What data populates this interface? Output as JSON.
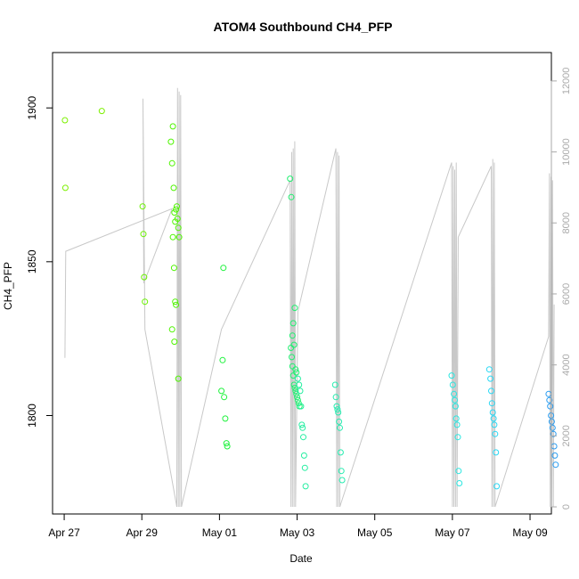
{
  "chart_data": {
    "type": "scatter",
    "title": "ATOM4 Southbound CH4_PFP",
    "xlabel": "Date",
    "ylabel": "CH4_PFP",
    "x_unit": "days since Apr 27",
    "xlim": [
      -0.3,
      12.55
    ],
    "ylim": [
      1768,
      1918
    ],
    "x_ticks": [
      {
        "value": 0,
        "label": "Apr 27"
      },
      {
        "value": 2,
        "label": "Apr 29"
      },
      {
        "value": 4,
        "label": "May 01"
      },
      {
        "value": 6,
        "label": "May 03"
      },
      {
        "value": 8,
        "label": "May 05"
      },
      {
        "value": 10,
        "label": "May 07"
      },
      {
        "value": 12,
        "label": "May 09"
      }
    ],
    "y_ticks": [
      1800,
      1850,
      1900
    ],
    "secondary_axis": {
      "ylim": [
        -200,
        12800
      ],
      "ticks": [
        0,
        2000,
        4000,
        6000,
        8000,
        10000,
        12000
      ],
      "color": "#aaaaaa"
    },
    "series": [
      {
        "name": "CH4_PFP",
        "points": [
          {
            "x": 0.02,
            "y": 1896,
            "color": "#7cf000"
          },
          {
            "x": 0.03,
            "y": 1874,
            "color": "#7cf000"
          },
          {
            "x": 0.97,
            "y": 1899,
            "color": "#7cf000"
          },
          {
            "x": 2.02,
            "y": 1868,
            "color": "#6af200"
          },
          {
            "x": 2.04,
            "y": 1859,
            "color": "#6af200"
          },
          {
            "x": 2.06,
            "y": 1845,
            "color": "#6af200"
          },
          {
            "x": 2.08,
            "y": 1837,
            "color": "#6af200"
          },
          {
            "x": 2.75,
            "y": 1889,
            "color": "#4ef400"
          },
          {
            "x": 2.78,
            "y": 1882,
            "color": "#4ef400"
          },
          {
            "x": 2.8,
            "y": 1894,
            "color": "#4ef400"
          },
          {
            "x": 2.82,
            "y": 1874,
            "color": "#4ef400"
          },
          {
            "x": 2.84,
            "y": 1866,
            "color": "#4ef400"
          },
          {
            "x": 2.86,
            "y": 1863,
            "color": "#4ef400"
          },
          {
            "x": 2.88,
            "y": 1867,
            "color": "#4ef400"
          },
          {
            "x": 2.9,
            "y": 1868,
            "color": "#4ef400"
          },
          {
            "x": 2.92,
            "y": 1864,
            "color": "#4ef400"
          },
          {
            "x": 2.94,
            "y": 1861,
            "color": "#4ef400"
          },
          {
            "x": 2.96,
            "y": 1858,
            "color": "#4ef400"
          },
          {
            "x": 2.8,
            "y": 1858,
            "color": "#4ef400"
          },
          {
            "x": 2.83,
            "y": 1848,
            "color": "#4ef400"
          },
          {
            "x": 2.86,
            "y": 1837,
            "color": "#4ef400"
          },
          {
            "x": 2.88,
            "y": 1836,
            "color": "#4ef400"
          },
          {
            "x": 2.78,
            "y": 1828,
            "color": "#4ef400"
          },
          {
            "x": 2.84,
            "y": 1824,
            "color": "#4ef400"
          },
          {
            "x": 2.94,
            "y": 1812,
            "color": "#4ef400"
          },
          {
            "x": 4.05,
            "y": 1808,
            "color": "#1ef23c"
          },
          {
            "x": 4.08,
            "y": 1818,
            "color": "#1ef23c"
          },
          {
            "x": 4.1,
            "y": 1848,
            "color": "#1ef23c"
          },
          {
            "x": 4.12,
            "y": 1806,
            "color": "#1ef23c"
          },
          {
            "x": 4.15,
            "y": 1799,
            "color": "#1ef23c"
          },
          {
            "x": 4.18,
            "y": 1791,
            "color": "#1ef23c"
          },
          {
            "x": 4.2,
            "y": 1790,
            "color": "#1ef23c"
          },
          {
            "x": 5.82,
            "y": 1877,
            "color": "#20f070"
          },
          {
            "x": 5.85,
            "y": 1871,
            "color": "#20f070"
          },
          {
            "x": 5.88,
            "y": 1826,
            "color": "#20f070"
          },
          {
            "x": 5.9,
            "y": 1830,
            "color": "#20f070"
          },
          {
            "x": 5.92,
            "y": 1823,
            "color": "#20f070"
          },
          {
            "x": 5.94,
            "y": 1835,
            "color": "#20f070"
          },
          {
            "x": 5.96,
            "y": 1815,
            "color": "#20f070"
          },
          {
            "x": 5.98,
            "y": 1814,
            "color": "#20f070"
          },
          {
            "x": 5.84,
            "y": 1822,
            "color": "#20f070"
          },
          {
            "x": 5.86,
            "y": 1819,
            "color": "#20f070"
          },
          {
            "x": 5.88,
            "y": 1816,
            "color": "#20f070"
          },
          {
            "x": 5.9,
            "y": 1813,
            "color": "#20f070"
          },
          {
            "x": 5.92,
            "y": 1810,
            "color": "#20f070"
          },
          {
            "x": 5.94,
            "y": 1809,
            "color": "#20f070"
          },
          {
            "x": 5.96,
            "y": 1808,
            "color": "#20f070"
          },
          {
            "x": 5.98,
            "y": 1807,
            "color": "#20f070"
          },
          {
            "x": 6.0,
            "y": 1806,
            "color": "#20f070"
          },
          {
            "x": 6.02,
            "y": 1805,
            "color": "#20f070"
          },
          {
            "x": 6.04,
            "y": 1804,
            "color": "#20f070"
          },
          {
            "x": 6.06,
            "y": 1803,
            "color": "#20f070"
          },
          {
            "x": 6.02,
            "y": 1812,
            "color": "#24eea0"
          },
          {
            "x": 6.05,
            "y": 1810,
            "color": "#24eea0"
          },
          {
            "x": 6.08,
            "y": 1808,
            "color": "#24eea0"
          },
          {
            "x": 6.1,
            "y": 1803,
            "color": "#24eea0"
          },
          {
            "x": 6.12,
            "y": 1797,
            "color": "#24eea0"
          },
          {
            "x": 6.14,
            "y": 1796,
            "color": "#24eea0"
          },
          {
            "x": 6.16,
            "y": 1793,
            "color": "#24eea0"
          },
          {
            "x": 6.18,
            "y": 1787,
            "color": "#24eea0"
          },
          {
            "x": 6.2,
            "y": 1783,
            "color": "#24eea0"
          },
          {
            "x": 6.22,
            "y": 1777,
            "color": "#24eea0"
          },
          {
            "x": 6.98,
            "y": 1810,
            "color": "#26ecb0"
          },
          {
            "x": 7.0,
            "y": 1806,
            "color": "#26ecb0"
          },
          {
            "x": 7.02,
            "y": 1803,
            "color": "#26ecb0"
          },
          {
            "x": 7.04,
            "y": 1802,
            "color": "#26ecb0"
          },
          {
            "x": 7.06,
            "y": 1801,
            "color": "#26ecb0"
          },
          {
            "x": 7.08,
            "y": 1798,
            "color": "#26ecb0"
          },
          {
            "x": 7.1,
            "y": 1796,
            "color": "#26ecb0"
          },
          {
            "x": 7.12,
            "y": 1788,
            "color": "#26ecb0"
          },
          {
            "x": 7.14,
            "y": 1782,
            "color": "#26ecb0"
          },
          {
            "x": 7.16,
            "y": 1779,
            "color": "#26ecb0"
          },
          {
            "x": 9.98,
            "y": 1813,
            "color": "#2ae6e0"
          },
          {
            "x": 10.01,
            "y": 1810,
            "color": "#2ae6e0"
          },
          {
            "x": 10.04,
            "y": 1807,
            "color": "#2ae6e0"
          },
          {
            "x": 10.06,
            "y": 1805,
            "color": "#2ae6e0"
          },
          {
            "x": 10.08,
            "y": 1803,
            "color": "#2ae6e0"
          },
          {
            "x": 10.1,
            "y": 1799,
            "color": "#2ae6e0"
          },
          {
            "x": 10.12,
            "y": 1797,
            "color": "#2ae6e0"
          },
          {
            "x": 10.14,
            "y": 1793,
            "color": "#2ae6e0"
          },
          {
            "x": 10.16,
            "y": 1782,
            "color": "#2ae6e0"
          },
          {
            "x": 10.18,
            "y": 1778,
            "color": "#2ae6e0"
          },
          {
            "x": 10.95,
            "y": 1815,
            "color": "#2ad8f4"
          },
          {
            "x": 10.98,
            "y": 1812,
            "color": "#2ad8f4"
          },
          {
            "x": 11.0,
            "y": 1808,
            "color": "#2ad8f4"
          },
          {
            "x": 11.02,
            "y": 1804,
            "color": "#2ad8f4"
          },
          {
            "x": 11.04,
            "y": 1801,
            "color": "#2ad8f4"
          },
          {
            "x": 11.06,
            "y": 1799,
            "color": "#2ad8f4"
          },
          {
            "x": 11.08,
            "y": 1797,
            "color": "#2ad8f4"
          },
          {
            "x": 11.1,
            "y": 1794,
            "color": "#2ad8f4"
          },
          {
            "x": 11.12,
            "y": 1788,
            "color": "#2ad8f4"
          },
          {
            "x": 11.14,
            "y": 1777,
            "color": "#2ad8f4"
          },
          {
            "x": 12.48,
            "y": 1807,
            "color": "#2a9cf0"
          },
          {
            "x": 12.5,
            "y": 1805,
            "color": "#2a9cf0"
          },
          {
            "x": 12.52,
            "y": 1803,
            "color": "#2a9cf0"
          },
          {
            "x": 12.54,
            "y": 1800,
            "color": "#2a9cf0"
          },
          {
            "x": 12.56,
            "y": 1798,
            "color": "#2a9cf0"
          },
          {
            "x": 12.58,
            "y": 1796,
            "color": "#2a9cf0"
          },
          {
            "x": 12.6,
            "y": 1794,
            "color": "#2a9cf0"
          },
          {
            "x": 12.62,
            "y": 1790,
            "color": "#2a9cf0"
          },
          {
            "x": 12.64,
            "y": 1787,
            "color": "#2a9cf0"
          },
          {
            "x": 12.66,
            "y": 1784,
            "color": "#2a9cf0"
          }
        ]
      }
    ],
    "altitude_track": {
      "name": "secondary series (right axis)",
      "color": "#c8c8c8",
      "points": [
        [
          0.02,
          4200
        ],
        [
          0.04,
          7200
        ],
        [
          2.78,
          8400
        ],
        [
          2.05,
          6300
        ],
        [
          2.03,
          11500
        ],
        [
          2.08,
          5000
        ],
        [
          2.9,
          0
        ],
        [
          2.92,
          11800
        ],
        [
          2.94,
          0
        ],
        [
          2.96,
          11700
        ],
        [
          2.98,
          0
        ],
        [
          3.0,
          11600
        ],
        [
          3.02,
          0
        ],
        [
          4.05,
          5000
        ],
        [
          5.82,
          9200
        ],
        [
          5.84,
          0
        ],
        [
          5.86,
          10000
        ],
        [
          5.88,
          0
        ],
        [
          5.9,
          10100
        ],
        [
          5.92,
          0
        ],
        [
          5.94,
          10300
        ],
        [
          5.96,
          0
        ],
        [
          6.02,
          5500
        ],
        [
          7.0,
          10100
        ],
        [
          7.02,
          0
        ],
        [
          7.04,
          10000
        ],
        [
          7.06,
          0
        ],
        [
          7.08,
          9900
        ],
        [
          7.1,
          0
        ],
        [
          9.98,
          9700
        ],
        [
          10.0,
          0
        ],
        [
          10.02,
          9600
        ],
        [
          10.04,
          0
        ],
        [
          10.06,
          9500
        ],
        [
          10.08,
          0
        ],
        [
          10.1,
          9700
        ],
        [
          10.12,
          0
        ],
        [
          10.15,
          7600
        ],
        [
          11.0,
          9600
        ],
        [
          11.02,
          0
        ],
        [
          11.04,
          9800
        ],
        [
          11.06,
          0
        ],
        [
          11.08,
          9700
        ],
        [
          11.1,
          0
        ],
        [
          12.48,
          4800
        ],
        [
          12.5,
          9400
        ],
        [
          12.52,
          0
        ],
        [
          12.54,
          9300
        ],
        [
          12.56,
          0
        ],
        [
          12.58,
          9200
        ],
        [
          12.6,
          0
        ],
        [
          12.62,
          5700
        ]
      ]
    }
  }
}
